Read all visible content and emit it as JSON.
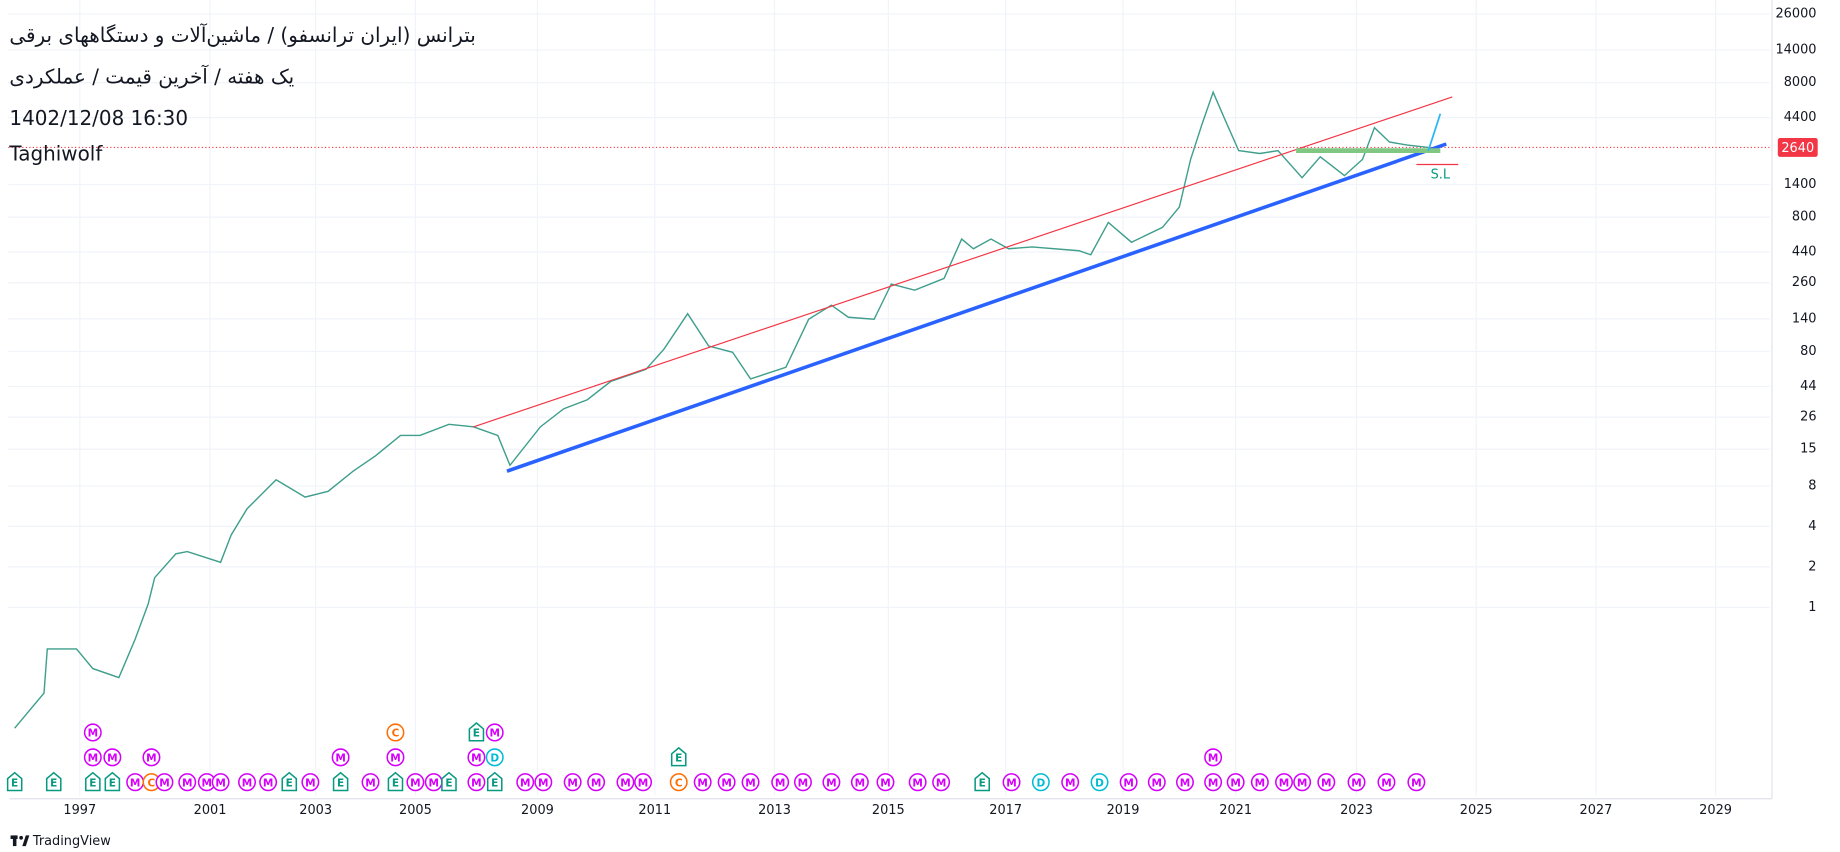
{
  "chart_data": {
    "type": "line",
    "title": "بترانس (ایران ترانسفو) / ماشین‌آلات و دستگاههای برقی",
    "subtitle": "یک هفته / آخرین قیمت / عملکردی",
    "date": "1402/12/08 16:30",
    "author": "Taghiwolf",
    "log_scale": true,
    "grid": true,
    "color": "#3f9e8c",
    "x": [
      1995.0,
      1995.9,
      1996.0,
      1996.9,
      1997.4,
      1998.2,
      1998.7,
      1999.1,
      1999.3,
      1999.95,
      2000.3,
      2001.2,
      2001.4,
      2001.7,
      2002.25,
      2002.8,
      2003.25,
      2003.75,
      2004.2,
      2004.7,
      2005.15,
      2006.1,
      2006.9,
      2007.7,
      2008.1,
      2009.05,
      2009.45,
      2009.85,
      2010.25,
      2010.85,
      2011.15,
      2011.55,
      2011.9,
      2012.3,
      2012.6,
      2013.2,
      2013.6,
      2014.0,
      2014.3,
      2014.75,
      2015.05,
      2015.45,
      2015.95,
      2016.25,
      2016.45,
      2016.75,
      2017.05,
      2017.45,
      2018.25,
      2018.45,
      2018.75,
      2019.15,
      2019.7,
      2020.0,
      2020.2,
      2020.4,
      2020.6,
      2020.8,
      2021.05,
      2021.4,
      2021.7,
      2022.1,
      2022.4,
      2022.8,
      2023.1,
      2023.3,
      2023.55,
      2023.85,
      2024.2
    ],
    "values": [
      0.126,
      0.23,
      0.49,
      0.49,
      0.35,
      0.3,
      0.58,
      1.06,
      1.66,
      2.5,
      2.6,
      2.16,
      3.45,
      5.4,
      8.9,
      6.6,
      7.3,
      10.3,
      13.4,
      19,
      19,
      23,
      22,
      19,
      11.4,
      22,
      30,
      35,
      48,
      59,
      83,
      153,
      88,
      79,
      50,
      61,
      139,
      177,
      144,
      139,
      254,
      229,
      280,
      550,
      465,
      550,
      465,
      480,
      450,
      420,
      730,
      520,
      670,
      950,
      2150,
      3900,
      6800,
      4350,
      2500,
      2380,
      2500,
      1570,
      2250,
      1630,
      2150,
      3700,
      2900,
      2750,
      2640
    ],
    "xlim": [
      1994.8,
      2029.9
    ],
    "xticks": [
      1997,
      2001,
      2003,
      2005,
      2009,
      2011,
      2013,
      2015,
      2017,
      2019,
      2021,
      2023,
      2025,
      2027,
      2029
    ],
    "ylim": [
      0.04,
      33000
    ],
    "yticks": [
      1,
      2,
      4,
      8,
      15,
      26,
      44,
      80,
      140,
      260,
      440,
      800,
      1400,
      4400,
      8000,
      14000,
      26000
    ],
    "last_price": 2640,
    "last_price_color": "#f23645",
    "drawings": [
      {
        "color": "#f23645",
        "x": [
          2006.9,
          2024.6
        ],
        "values": [
          22,
          6270
        ]
      },
      {
        "color": "#2962ff",
        "x": [
          2008.0,
          2024.5
        ],
        "values": [
          10.3,
          2800
        ]
      },
      {
        "color": "#81c784",
        "x": [
          2022.0,
          2024.4
        ],
        "values": [
          2500,
          2500
        ]
      },
      {
        "color": "#f23645",
        "x": [
          2024.0,
          2024.7
        ],
        "values": [
          1970,
          1970
        ]
      },
      {
        "color": "#29b6f6",
        "x": [
          2024.2,
          2024.4
        ],
        "values": [
          2500,
          4700
        ]
      }
    ],
    "annotations": [
      {
        "text": "S.L",
        "x": 2024.4,
        "y": 1645,
        "color": "#089981"
      }
    ],
    "event_colors": {
      "E": "#089981",
      "M": "#d500f9",
      "C": "#ff6d00",
      "D": "#00bcd4"
    },
    "events": [
      {
        "x": 1995.0,
        "label": "E"
      },
      {
        "x": 1996.2,
        "label": "E"
      },
      {
        "x": 1997.4,
        "label": "E"
      },
      {
        "x": 1997.4,
        "label": "M"
      },
      {
        "x": 1997.4,
        "label": "M"
      },
      {
        "x": 1998.0,
        "label": "E"
      },
      {
        "x": 1998.0,
        "label": "M"
      },
      {
        "x": 1998.7,
        "label": "M"
      },
      {
        "x": 1999.2,
        "label": "C"
      },
      {
        "x": 1999.2,
        "label": "M"
      },
      {
        "x": 1999.6,
        "label": "M"
      },
      {
        "x": 2000.3,
        "label": "M"
      },
      {
        "x": 2000.9,
        "label": "M"
      },
      {
        "x": 2001.2,
        "label": "M"
      },
      {
        "x": 2001.7,
        "label": "M"
      },
      {
        "x": 2002.1,
        "label": "M"
      },
      {
        "x": 2002.5,
        "label": "E"
      },
      {
        "x": 2002.9,
        "label": "M"
      },
      {
        "x": 2003.5,
        "label": "E"
      },
      {
        "x": 2003.5,
        "label": "M"
      },
      {
        "x": 2004.1,
        "label": "M"
      },
      {
        "x": 2004.6,
        "label": "E"
      },
      {
        "x": 2004.6,
        "label": "M"
      },
      {
        "x": 2004.6,
        "label": "C"
      },
      {
        "x": 2005.0,
        "label": "M"
      },
      {
        "x": 2005.6,
        "label": "M"
      },
      {
        "x": 2006.1,
        "label": "E"
      },
      {
        "x": 2007.0,
        "label": "M"
      },
      {
        "x": 2007.0,
        "label": "M"
      },
      {
        "x": 2007.0,
        "label": "E"
      },
      {
        "x": 2007.6,
        "label": "E"
      },
      {
        "x": 2007.6,
        "label": "D"
      },
      {
        "x": 2007.6,
        "label": "M"
      },
      {
        "x": 2008.6,
        "label": "M"
      },
      {
        "x": 2009.1,
        "label": "M"
      },
      {
        "x": 2009.6,
        "label": "M"
      },
      {
        "x": 2010.0,
        "label": "M"
      },
      {
        "x": 2010.5,
        "label": "M"
      },
      {
        "x": 2010.8,
        "label": "M"
      },
      {
        "x": 2011.4,
        "label": "C"
      },
      {
        "x": 2011.4,
        "label": "E"
      },
      {
        "x": 2011.8,
        "label": "M"
      },
      {
        "x": 2012.2,
        "label": "M"
      },
      {
        "x": 2012.6,
        "label": "M"
      },
      {
        "x": 2013.1,
        "label": "M"
      },
      {
        "x": 2013.5,
        "label": "M"
      },
      {
        "x": 2014.0,
        "label": "M"
      },
      {
        "x": 2014.5,
        "label": "M"
      },
      {
        "x": 2014.95,
        "label": "M"
      },
      {
        "x": 2015.5,
        "label": "M"
      },
      {
        "x": 2015.9,
        "label": "M"
      },
      {
        "x": 2016.6,
        "label": "E"
      },
      {
        "x": 2017.1,
        "label": "M"
      },
      {
        "x": 2017.6,
        "label": "D"
      },
      {
        "x": 2018.1,
        "label": "M"
      },
      {
        "x": 2018.6,
        "label": "D"
      },
      {
        "x": 2019.1,
        "label": "M"
      },
      {
        "x": 2019.6,
        "label": "M"
      },
      {
        "x": 2020.1,
        "label": "M"
      },
      {
        "x": 2020.6,
        "label": "M"
      },
      {
        "x": 2020.6,
        "label": "M"
      },
      {
        "x": 2021.0,
        "label": "M"
      },
      {
        "x": 2021.4,
        "label": "M"
      },
      {
        "x": 2021.8,
        "label": "M"
      },
      {
        "x": 2022.1,
        "label": "M"
      },
      {
        "x": 2022.5,
        "label": "M"
      },
      {
        "x": 2023.0,
        "label": "M"
      },
      {
        "x": 2023.5,
        "label": "M"
      },
      {
        "x": 2024.0,
        "label": "M"
      }
    ]
  },
  "footer": "TradingView"
}
